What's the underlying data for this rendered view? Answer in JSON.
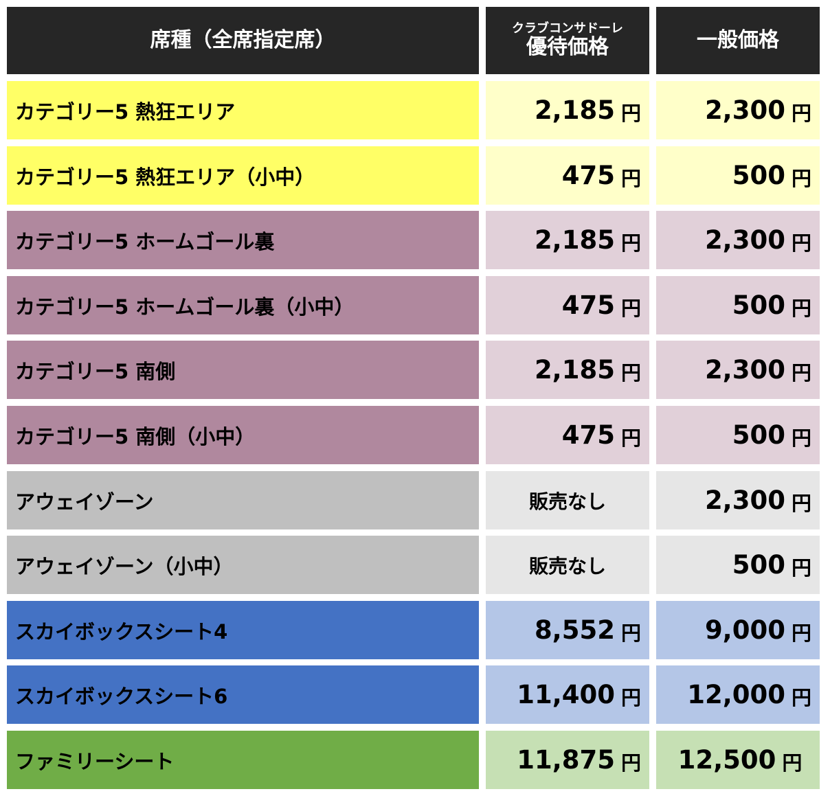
{
  "header": {
    "seat_type": "席種（全席指定席）",
    "member_sub": "クラブコンサドーレ",
    "member_main": "優待価格",
    "general": "一般価格"
  },
  "currency_unit": "円",
  "rows": [
    {
      "seat": "カテゴリー5 熱狂エリア",
      "member": "2,185",
      "general": "2,300",
      "colors": {
        "seat": "#FFFF66",
        "price": "#FFFFC9"
      }
    },
    {
      "seat": "カテゴリー5 熱狂エリア（小中）",
      "member": "475",
      "general": "500",
      "colors": {
        "seat": "#FFFF66",
        "price": "#FFFFC9"
      }
    },
    {
      "seat": "カテゴリー5 ホームゴール裏",
      "member": "2,185",
      "general": "2,300",
      "colors": {
        "seat": "#B0889E",
        "price": "#E1D0D9"
      }
    },
    {
      "seat": "カテゴリー5 ホームゴール裏（小中）",
      "member": "475",
      "general": "500",
      "colors": {
        "seat": "#B0889E",
        "price": "#E1D0D9"
      }
    },
    {
      "seat": "カテゴリー5 南側",
      "member": "2,185",
      "general": "2,300",
      "colors": {
        "seat": "#B0889E",
        "price": "#E1D0D9"
      }
    },
    {
      "seat": "カテゴリー5 南側（小中）",
      "member": "475",
      "general": "500",
      "colors": {
        "seat": "#B0889E",
        "price": "#E1D0D9"
      }
    },
    {
      "seat": "アウェイゾーン",
      "member_text": "販売なし",
      "general": "2,300",
      "colors": {
        "seat": "#BFBFBF",
        "price": "#E6E6E6"
      }
    },
    {
      "seat": "アウェイゾーン（小中）",
      "member_text": "販売なし",
      "general": "500",
      "colors": {
        "seat": "#BFBFBF",
        "price": "#E6E6E6"
      }
    },
    {
      "seat": "スカイボックスシート4",
      "member": "8,552",
      "general": "9,000",
      "colors": {
        "seat": "#4472C4",
        "price": "#B4C6E7"
      }
    },
    {
      "seat": "スカイボックスシート6",
      "member": "11,400",
      "general": "12,000",
      "colors": {
        "seat": "#4472C4",
        "price": "#B4C6E7"
      }
    },
    {
      "seat": "ファミリーシート",
      "member": "11,875",
      "general": "12,500",
      "colors": {
        "seat": "#70AD47",
        "price": "#C6E0B4"
      }
    }
  ]
}
